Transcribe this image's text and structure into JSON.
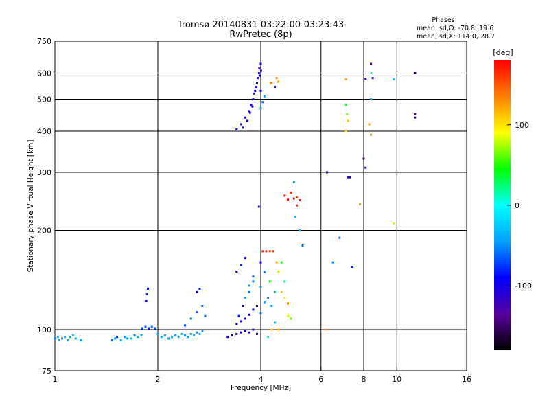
{
  "chart_data": {
    "type": "scatter",
    "title": "Tromsø 20140831 03:22:00-03:23:43",
    "subtitle": "RwPretec (8p)",
    "xlabel": "Frequency [MHz]",
    "ylabel": "Stationary phase Virtual Height [km]",
    "x_scale": "log",
    "y_scale": "log",
    "xlim": [
      1,
      16
    ],
    "ylim": [
      75,
      750
    ],
    "x_ticks": [
      1,
      2,
      4,
      6,
      8,
      10,
      16
    ],
    "y_ticks": [
      75,
      100,
      200,
      300,
      400,
      500,
      600,
      750
    ],
    "grid": true,
    "stats": {
      "heading": "Phases",
      "line_o": "mean, sd,O: -70.8, 19.6",
      "line_x": "mean, sd,X: 114.0, 28.7"
    },
    "colorbar": {
      "label": "[deg]",
      "range": [
        -180,
        180
      ],
      "ticks": [
        100,
        0,
        -100
      ],
      "colors": [
        "#000000",
        "#5a00a0",
        "#0000ff",
        "#00a0ff",
        "#00ffff",
        "#00ff00",
        "#ffff00",
        "#ff8000",
        "#ff0000"
      ]
    },
    "series": [
      {
        "values": [
          [
            1.0,
            94,
            -40
          ],
          [
            1.02,
            95,
            -45
          ],
          [
            1.03,
            93,
            -35
          ],
          [
            1.05,
            94,
            -50
          ],
          [
            1.07,
            95,
            -30
          ],
          [
            1.09,
            93,
            -40
          ],
          [
            1.11,
            95,
            -45
          ],
          [
            1.13,
            96,
            -35
          ],
          [
            1.15,
            94,
            -30
          ],
          [
            1.19,
            93,
            -40
          ],
          [
            1.47,
            93,
            -60
          ],
          [
            1.5,
            94,
            -45
          ],
          [
            1.52,
            95,
            -80
          ],
          [
            1.56,
            93,
            -40
          ],
          [
            1.6,
            95,
            -35
          ],
          [
            1.63,
            94,
            -45
          ],
          [
            1.67,
            94,
            -30
          ],
          [
            1.71,
            96,
            -50
          ],
          [
            1.75,
            95,
            -40
          ],
          [
            1.79,
            96,
            -45
          ],
          [
            1.8,
            101,
            -70
          ],
          [
            1.84,
            102,
            -60
          ],
          [
            1.88,
            101,
            -80
          ],
          [
            1.92,
            102,
            -60
          ],
          [
            1.96,
            101,
            -70
          ],
          [
            2.0,
            97,
            -40
          ],
          [
            2.05,
            95,
            -35
          ],
          [
            2.1,
            96,
            -50
          ],
          [
            2.15,
            94,
            -40
          ],
          [
            2.2,
            95,
            -35
          ],
          [
            2.25,
            96,
            -45
          ],
          [
            2.3,
            95,
            -40
          ],
          [
            2.35,
            97,
            -30
          ],
          [
            2.4,
            96,
            -50
          ],
          [
            2.45,
            95,
            -35
          ],
          [
            2.5,
            97,
            -40
          ],
          [
            2.55,
            96,
            -45
          ],
          [
            2.6,
            98,
            -50
          ],
          [
            2.65,
            97,
            -40
          ],
          [
            2.7,
            99,
            -45
          ],
          [
            2.4,
            103,
            -70
          ],
          [
            2.5,
            108,
            -60
          ],
          [
            2.6,
            113,
            -65
          ],
          [
            2.7,
            118,
            -55
          ],
          [
            2.75,
            110,
            -60
          ],
          [
            1.85,
            122,
            -90
          ],
          [
            1.86,
            128,
            -85
          ],
          [
            1.87,
            133,
            -95
          ],
          [
            2.6,
            130,
            -90
          ],
          [
            2.65,
            133,
            -80
          ]
        ]
      },
      {
        "values": [
          [
            3.2,
            95,
            -110
          ],
          [
            3.3,
            96,
            -90
          ],
          [
            3.4,
            97,
            -120
          ],
          [
            3.5,
            98,
            -100
          ],
          [
            3.6,
            99,
            -95
          ],
          [
            3.7,
            98,
            -110
          ],
          [
            3.8,
            100,
            -120
          ],
          [
            3.9,
            97,
            -100
          ],
          [
            3.4,
            104,
            -90
          ],
          [
            3.5,
            106,
            -100
          ],
          [
            3.6,
            108,
            -115
          ],
          [
            3.7,
            111,
            -95
          ],
          [
            3.8,
            115,
            -100
          ],
          [
            3.9,
            118,
            -110
          ],
          [
            4.0,
            112,
            -60
          ],
          [
            4.1,
            121,
            -45
          ],
          [
            4.2,
            125,
            -50
          ],
          [
            4.3,
            118,
            -40
          ],
          [
            4.4,
            130,
            -30
          ],
          [
            4.0,
            135,
            -50
          ],
          [
            3.6,
            125,
            -40
          ],
          [
            3.7,
            130,
            -60
          ],
          [
            3.8,
            140,
            -50
          ],
          [
            4.0,
            160,
            -100
          ],
          [
            4.05,
            173,
            170
          ],
          [
            4.15,
            173,
            175
          ],
          [
            4.25,
            173,
            160
          ],
          [
            4.35,
            173,
            165
          ],
          [
            4.45,
            160,
            120
          ],
          [
            4.6,
            130,
            110
          ],
          [
            4.7,
            125,
            100
          ],
          [
            4.8,
            110,
            80
          ],
          [
            4.9,
            108,
            60
          ],
          [
            4.5,
            100,
            120
          ],
          [
            4.4,
            105,
            -20
          ],
          [
            3.4,
            150,
            -90
          ],
          [
            3.6,
            165,
            -100
          ],
          [
            3.5,
            157,
            -80
          ],
          [
            4.3,
            100,
            110
          ],
          [
            4.2,
            95,
            20
          ],
          [
            4.6,
            160,
            40
          ],
          [
            4.7,
            140,
            20
          ],
          [
            4.8,
            120,
            130
          ],
          [
            3.8,
            145,
            -60
          ],
          [
            3.7,
            136,
            -40
          ],
          [
            3.45,
            110,
            -80
          ],
          [
            3.55,
            118,
            -90
          ],
          [
            4.1,
            150,
            -60
          ],
          [
            4.25,
            140,
            40
          ],
          [
            4.5,
            150,
            80
          ]
        ]
      },
      {
        "values": [
          [
            3.4,
            405,
            -100
          ],
          [
            3.5,
            420,
            -110
          ],
          [
            3.6,
            440,
            -95
          ],
          [
            3.7,
            460,
            -105
          ],
          [
            3.75,
            480,
            -100
          ],
          [
            3.8,
            500,
            -115
          ],
          [
            3.85,
            530,
            -100
          ],
          [
            3.9,
            560,
            -105
          ],
          [
            3.95,
            600,
            -95
          ],
          [
            4.0,
            640,
            -100
          ],
          [
            3.55,
            410,
            -90
          ],
          [
            3.65,
            430,
            -100
          ],
          [
            3.72,
            455,
            -110
          ],
          [
            3.78,
            475,
            -100
          ],
          [
            3.82,
            520,
            -120
          ],
          [
            3.88,
            545,
            -95
          ],
          [
            3.92,
            580,
            -100
          ],
          [
            3.96,
            620,
            -110
          ],
          [
            4.0,
            470,
            -40
          ],
          [
            4.05,
            490,
            -60
          ],
          [
            4.1,
            510,
            -50
          ],
          [
            4.0,
            530,
            -100
          ],
          [
            3.97,
            590,
            -100
          ],
          [
            4.01,
            610,
            -95
          ],
          [
            4.4,
            545,
            -110
          ],
          [
            4.5,
            565,
            120
          ],
          [
            4.45,
            580,
            130
          ],
          [
            4.3,
            560,
            140
          ],
          [
            3.95,
            236,
            -120
          ],
          [
            4.7,
            255,
            170
          ],
          [
            4.8,
            248,
            170
          ],
          [
            4.9,
            260,
            165
          ],
          [
            5.0,
            250,
            170
          ],
          [
            5.1,
            252,
            165
          ],
          [
            5.2,
            247,
            170
          ],
          [
            5.1,
            238,
            160
          ],
          [
            5.0,
            280,
            -40
          ],
          [
            5.05,
            220,
            -30
          ],
          [
            5.2,
            200,
            -40
          ],
          [
            5.3,
            180,
            -60
          ],
          [
            6.25,
            300,
            -120
          ],
          [
            6.5,
            160,
            -50
          ],
          [
            6.8,
            190,
            -60
          ],
          [
            7.2,
            290,
            -110
          ],
          [
            7.3,
            290,
            -120
          ],
          [
            7.4,
            155,
            -80
          ],
          [
            7.8,
            240,
            120
          ],
          [
            7.1,
            575,
            120
          ],
          [
            7.15,
            450,
            70
          ],
          [
            7.1,
            480,
            40
          ],
          [
            7.1,
            400,
            100
          ],
          [
            7.2,
            430,
            110
          ],
          [
            8.0,
            330,
            -150
          ],
          [
            8.1,
            310,
            -120
          ],
          [
            8.1,
            575,
            -100
          ],
          [
            8.4,
            640,
            -130
          ],
          [
            8.4,
            600,
            20
          ],
          [
            8.5,
            580,
            -120
          ],
          [
            8.4,
            500,
            -40
          ],
          [
            8.3,
            420,
            120
          ],
          [
            8.4,
            390,
            130
          ],
          [
            9.8,
            210,
            80
          ],
          [
            9.8,
            575,
            -30
          ],
          [
            11.3,
            600,
            -130
          ],
          [
            11.3,
            450,
            -130
          ],
          [
            11.3,
            440,
            -110
          ],
          [
            6.2,
            100,
            130
          ]
        ]
      }
    ]
  }
}
